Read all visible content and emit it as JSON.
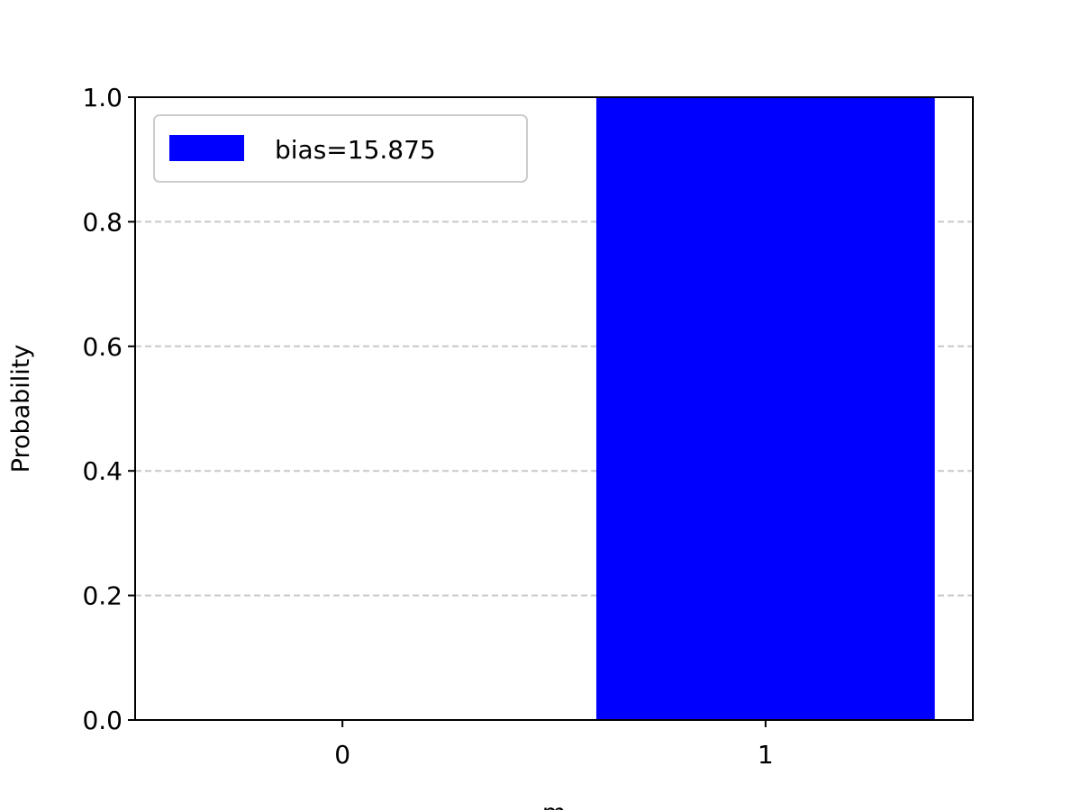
{
  "chart_data": {
    "type": "bar",
    "categories": [
      "0",
      "1"
    ],
    "x": [
      0,
      1
    ],
    "series": [
      {
        "name": "bias=15.875",
        "values": [
          0.0,
          1.0
        ],
        "color": "#0000ff"
      }
    ],
    "xlabel": "m",
    "ylabel": "Probability",
    "ylim": [
      0,
      1
    ],
    "xlim": [
      -0.49,
      1.49
    ],
    "yticks": [
      "0.0",
      "0.2",
      "0.4",
      "0.6",
      "0.8",
      "1.0"
    ],
    "xticks": [
      "0",
      "1"
    ],
    "grid": {
      "axis": "y",
      "style": "dashed",
      "color": "#c8c8c8"
    },
    "legend": {
      "placement": "upper left",
      "entries": [
        "bias=15.875"
      ]
    }
  }
}
